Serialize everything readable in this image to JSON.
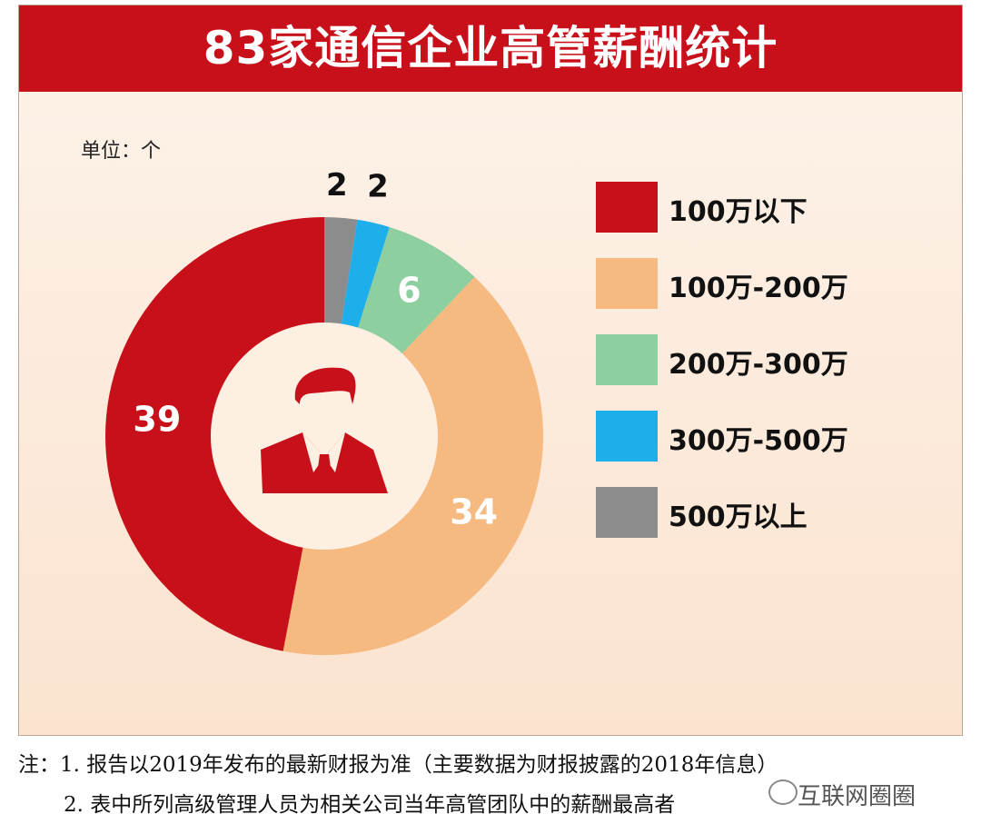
{
  "title": "83家通信企业高管薪酬统计",
  "unit_label": "单位：个",
  "chart_data": {
    "type": "pie",
    "variant": "donut",
    "title": "83家通信企业高管薪酬统计",
    "unit": "个",
    "categories": [
      "500万以上",
      "300万-500万",
      "200万-300万",
      "100万-200万",
      "100万以下"
    ],
    "values": [
      2,
      2,
      6,
      34,
      39
    ],
    "colors": [
      "#8c8c8c",
      "#1eaeea",
      "#8ecf9f",
      "#f6b97f",
      "#c8101a"
    ],
    "legend_order": [
      "100万以下",
      "100万-200万",
      "200万-300万",
      "300万-500万",
      "500万以上"
    ],
    "legend_colors": [
      "#c8101a",
      "#f6b97f",
      "#8ecf9f",
      "#1eaeea",
      "#8c8c8c"
    ],
    "legend_position": "right",
    "center_icon": "businessman-icon"
  },
  "notes": [
    "注：1. 报告以2019年发布的最新财报为准（主要数据为财报披露的2018年信息）",
    "2. 表中所列高级管理人员为相关公司当年高管团队中的薪酬最高者"
  ],
  "watermark": "互联网圈圈"
}
